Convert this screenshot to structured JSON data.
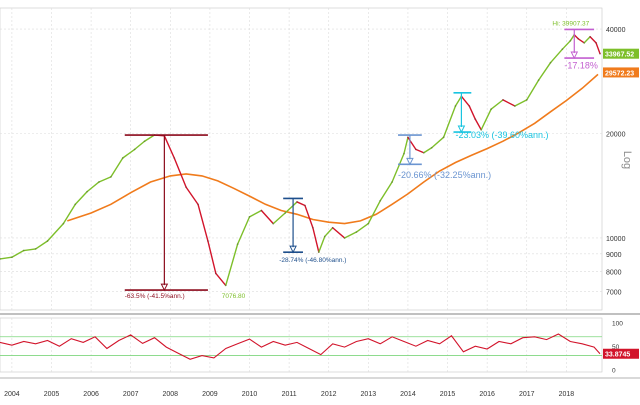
{
  "chart_data": [
    {
      "type": "line",
      "scale": "log",
      "ylabel": "Log",
      "y_ticks": [
        7000,
        8000,
        9000,
        10000,
        20000,
        40000
      ],
      "y_tick_labels": [
        "7000",
        "8000",
        "9000",
        "10000",
        "20000",
        "40000"
      ],
      "ylim": [
        6200,
        46000
      ],
      "xlim": [
        2003.7,
        2018.9
      ],
      "x_ticks": [
        2004,
        2005,
        2006,
        2007,
        2008,
        2009,
        2010,
        2011,
        2012,
        2013,
        2014,
        2015,
        2016,
        2017,
        2018
      ],
      "x_tick_labels": [
        "2004",
        "2005",
        "2006",
        "2007",
        "2008",
        "2009",
        "2010",
        "2011",
        "2012",
        "2013",
        "2014",
        "2015",
        "2016",
        "2017",
        "2018"
      ],
      "grid": true,
      "series": [
        {
          "role": "price",
          "color_up": "#7dbf2a",
          "color_down": "#d2142b",
          "x": [
            2003.7,
            2004.0,
            2004.3,
            2004.6,
            2004.9,
            2005.3,
            2005.6,
            2005.9,
            2006.2,
            2006.5,
            2006.8,
            2007.1,
            2007.35,
            2007.6,
            2007.85,
            2008.1,
            2008.4,
            2008.7,
            2008.95,
            2009.15,
            2009.4,
            2009.7,
            2010.0,
            2010.3,
            2010.6,
            2010.9,
            2011.2,
            2011.4,
            2011.6,
            2011.75,
            2011.9,
            2012.1,
            2012.4,
            2012.7,
            2013.0,
            2013.3,
            2013.6,
            2013.9,
            2014.0,
            2014.2,
            2014.4,
            2014.6,
            2014.9,
            2015.2,
            2015.35,
            2015.55,
            2015.7,
            2015.85,
            2016.1,
            2016.4,
            2016.7,
            2017.0,
            2017.3,
            2017.6,
            2017.9,
            2018.1,
            2018.2,
            2018.3,
            2018.45,
            2018.6,
            2018.75,
            2018.85
          ],
          "values": [
            8700,
            8800,
            9200,
            9300,
            9800,
            11000,
            12500,
            13600,
            14500,
            15000,
            17000,
            18000,
            19000,
            19800,
            19700,
            17000,
            14000,
            12500,
            9800,
            7900,
            7300,
            9600,
            11500,
            12000,
            11000,
            11800,
            12700,
            12400,
            10700,
            9100,
            10100,
            10700,
            10000,
            10400,
            11000,
            12800,
            14500,
            17500,
            19500,
            18000,
            17600,
            18200,
            19500,
            24000,
            25600,
            24000,
            22000,
            20500,
            23500,
            25000,
            24000,
            25000,
            28500,
            32000,
            35000,
            37000,
            38500,
            37500,
            36500,
            38000,
            36500,
            33967.52
          ]
        },
        {
          "role": "moving-average",
          "color": "#f07b1c",
          "x": [
            2005.4,
            2006.0,
            2006.5,
            2007.0,
            2007.5,
            2008.0,
            2008.4,
            2008.8,
            2009.2,
            2009.6,
            2010.0,
            2010.4,
            2010.8,
            2011.2,
            2011.6,
            2012.0,
            2012.4,
            2012.8,
            2013.2,
            2013.6,
            2014.0,
            2014.4,
            2014.8,
            2015.2,
            2015.6,
            2016.0,
            2016.4,
            2016.8,
            2017.2,
            2017.6,
            2018.0,
            2018.4,
            2018.8
          ],
          "values": [
            11200,
            11800,
            12500,
            13500,
            14500,
            15100,
            15300,
            15100,
            14600,
            13900,
            13200,
            12500,
            12000,
            11700,
            11300,
            11100,
            11000,
            11200,
            11700,
            12500,
            13400,
            14500,
            15600,
            16500,
            17300,
            18100,
            19000,
            20100,
            21400,
            23100,
            24900,
            27000,
            29600
          ]
        }
      ],
      "price_tag": {
        "text": "33967.52",
        "color": "#7dbf2a"
      },
      "ma_tag": {
        "text": "29572.23",
        "color": "#f07b1c"
      },
      "high_label": {
        "text": "Hi: 39907.37",
        "x": 2017.95,
        "value": 39907.37,
        "color": "#7dbf2a"
      },
      "low_label": {
        "text": "7076.80",
        "x": 2009.3,
        "value": 7076.8,
        "color": "#7dbf2a"
      },
      "drawdowns": [
        {
          "x0": 2006.85,
          "x1": 2008.95,
          "top": 19800,
          "bottom": 7076.8,
          "arrow_x": 2007.85,
          "color": "#8b0a1c",
          "label": "-63.5% (-41.5%ann.)",
          "label_x": 2006.85,
          "label_value": 6720
        },
        {
          "x0": 2010.85,
          "x1": 2011.35,
          "top": 13000,
          "bottom": 9100,
          "arrow_x": 2011.1,
          "color": "#1e4f8c",
          "label": "-28.74% (-46.80%ann.)",
          "label_x": 2010.75,
          "label_value": 8530
        },
        {
          "x0": 2013.75,
          "x1": 2014.35,
          "top": 19800,
          "bottom": 16300,
          "arrow_x": 2014.05,
          "color": "#6b95d1",
          "label": "-20.66% (-32.25%ann.)",
          "label_x": 2013.75,
          "label_value": 14900
        },
        {
          "x0": 2015.15,
          "x1": 2015.6,
          "top": 26200,
          "bottom": 20200,
          "arrow_x": 2015.35,
          "color": "#19c4e0",
          "label": "-23.03% (-39.60%ann.)",
          "label_x": 2015.2,
          "label_value": 19400
        },
        {
          "x0": 2017.95,
          "x1": 2018.7,
          "top": 39907.37,
          "bottom": 33000,
          "arrow_x": 2018.2,
          "color": "#c35fd0",
          "label": "-17.18%",
          "label_x": 2017.95,
          "label_value": 30800
        }
      ]
    },
    {
      "type": "line",
      "ylim": [
        -5,
        110
      ],
      "y_ticks": [
        0,
        50,
        100
      ],
      "y_tick_labels": [
        "0",
        "50",
        "100"
      ],
      "ref_lines": [
        30,
        70
      ],
      "ref_line_color": "#7ed67e",
      "xlim": [
        2003.7,
        2018.9
      ],
      "x_ticks": [
        2004,
        2005,
        2006,
        2007,
        2008,
        2009,
        2010,
        2011,
        2012,
        2013,
        2014,
        2015,
        2016,
        2017,
        2018
      ],
      "x_tick_labels": [
        "2004",
        "2005",
        "2006",
        "2007",
        "2008",
        "2009",
        "2010",
        "2011",
        "2012",
        "2013",
        "2014",
        "2015",
        "2016",
        "2017",
        "2018"
      ],
      "series": [
        {
          "role": "oscillator",
          "color": "#d2142b",
          "x": [
            2003.7,
            2004.0,
            2004.3,
            2004.6,
            2004.9,
            2005.2,
            2005.5,
            2005.8,
            2006.1,
            2006.4,
            2006.7,
            2007.0,
            2007.3,
            2007.6,
            2007.9,
            2008.2,
            2008.5,
            2008.8,
            2009.1,
            2009.4,
            2009.7,
            2010.0,
            2010.3,
            2010.6,
            2010.9,
            2011.2,
            2011.5,
            2011.8,
            2012.1,
            2012.4,
            2012.7,
            2013.0,
            2013.3,
            2013.6,
            2013.9,
            2014.2,
            2014.5,
            2014.8,
            2015.1,
            2015.4,
            2015.7,
            2016.0,
            2016.3,
            2016.6,
            2016.9,
            2017.2,
            2017.5,
            2017.8,
            2018.1,
            2018.4,
            2018.7,
            2018.85
          ],
          "values": [
            58,
            52,
            60,
            55,
            62,
            50,
            66,
            58,
            70,
            45,
            62,
            74,
            56,
            68,
            48,
            35,
            22,
            30,
            25,
            45,
            55,
            65,
            48,
            60,
            52,
            58,
            45,
            32,
            55,
            48,
            60,
            66,
            55,
            70,
            60,
            50,
            62,
            55,
            72,
            38,
            50,
            44,
            60,
            55,
            68,
            70,
            64,
            76,
            60,
            55,
            48,
            33.87
          ]
        }
      ],
      "value_tag": {
        "text": "33.8745",
        "color": "#d2142b"
      }
    }
  ]
}
